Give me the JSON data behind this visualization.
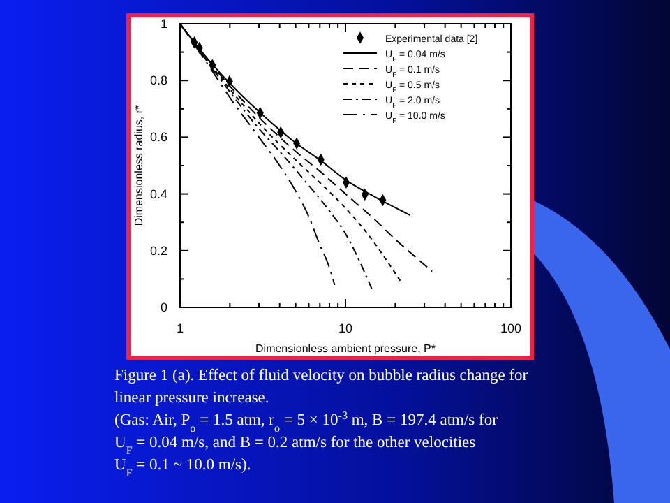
{
  "chart_data": {
    "type": "line",
    "xlabel": "Dimensionless ambient pressure, P*",
    "ylabel": "Dimensionless radius, r*",
    "log": "x",
    "xlim": [
      1,
      100
    ],
    "xticks": [
      1,
      {
        "value": 2,
        "label": null
      },
      {
        "value": 3,
        "label": null
      },
      {
        "value": 4,
        "label": null
      },
      {
        "value": 5,
        "label": null
      },
      {
        "value": 6,
        "label": null
      },
      {
        "value": 7,
        "label": null
      },
      {
        "value": 8,
        "label": null
      },
      {
        "value": 9,
        "label": null
      },
      10,
      {
        "value": 20,
        "label": null
      },
      {
        "value": 30,
        "label": null
      },
      {
        "value": 40,
        "label": null
      },
      {
        "value": 50,
        "label": null
      },
      {
        "value": 60,
        "label": null
      },
      {
        "value": 70,
        "label": null
      },
      {
        "value": 80,
        "label": null
      },
      {
        "value": 90,
        "label": null
      },
      100
    ],
    "ylim": [
      0,
      1
    ],
    "yticks": [
      0,
      {
        "value": 0.1,
        "label": null
      },
      0.2,
      {
        "value": 0.3,
        "label": null
      },
      0.4,
      {
        "value": 0.5,
        "label": null
      },
      0.6,
      {
        "value": 0.7,
        "label": null
      },
      0.8,
      {
        "value": 0.9,
        "label": null
      },
      1
    ],
    "legend": "top right",
    "grid": false,
    "series": [
      {
        "name": "Experimental data [2]",
        "type": "scatter",
        "marker": "diamond",
        "color": "#000000",
        "x": [
          1.22,
          1.31,
          1.57,
          1.99,
          3.05,
          4.06,
          5.07,
          7.1,
          10.1,
          13.1,
          16.8
        ],
        "values": [
          0.934,
          0.915,
          0.854,
          0.797,
          0.686,
          0.617,
          0.578,
          0.521,
          0.44,
          0.398,
          0.378
        ]
      },
      {
        "name": "U$_{F}$ = 0.04 m/s",
        "line_style": "solid",
        "color": "#000000",
        "x": [
          1,
          1.5,
          2,
          3,
          5,
          7,
          10,
          15,
          24.6
        ],
        "values": [
          1,
          0.87,
          0.79,
          0.69,
          0.58,
          0.52,
          0.45,
          0.39,
          0.325
        ]
      },
      {
        "name": "U$_{F}$ = 0.1 m/s",
        "line_style": "longdash",
        "color": "#000000",
        "x": [
          1,
          2,
          3,
          5,
          7,
          10,
          15,
          20,
          25,
          33.4
        ],
        "values": [
          1,
          0.78,
          0.67,
          0.55,
          0.48,
          0.4,
          0.31,
          0.24,
          0.19,
          0.127
        ]
      },
      {
        "name": "U$_{F}$ = 0.5 m/s",
        "line_style": "dashed",
        "color": "#000000",
        "x": [
          1,
          2,
          3,
          5,
          7,
          10,
          14,
          18,
          22.1
        ],
        "values": [
          1,
          0.77,
          0.65,
          0.52,
          0.44,
          0.35,
          0.25,
          0.16,
          0.082
        ]
      },
      {
        "name": "U$_{F}$ = 2.0 m/s",
        "line_style": "dashdot",
        "color": "#000000",
        "x": [
          1,
          2,
          3,
          4,
          6,
          8,
          10,
          12,
          14.4
        ],
        "values": [
          1,
          0.76,
          0.63,
          0.55,
          0.43,
          0.34,
          0.26,
          0.17,
          0.066
        ]
      },
      {
        "name": "U$_{F}$ = 10.0 m/s",
        "line_style": "longdashdot",
        "color": "#000000",
        "x": [
          1,
          1.5,
          2,
          3,
          4,
          5,
          6,
          7,
          8,
          8.6
        ],
        "values": [
          1,
          0.85,
          0.74,
          0.6,
          0.5,
          0.41,
          0.32,
          0.22,
          0.14,
          0.079
        ]
      }
    ],
    "annotations": [
      "Figure 1 (a). Effect of fluid velocity on bubble radius change for",
      "linear pressure increase.",
      "(Gas: Air, P$_{o}$ = 1.5 atm, r$_{o}$ = 5 × 10$^{-3}$ m, B = 197.4 atm/s for",
      "U$_{F}$ = 0.04 m/s, and B = 0.2 atm/s for the other velocities",
      "U$_{F}$ = 0.1 ~ 10.0 m/s)."
    ]
  }
}
